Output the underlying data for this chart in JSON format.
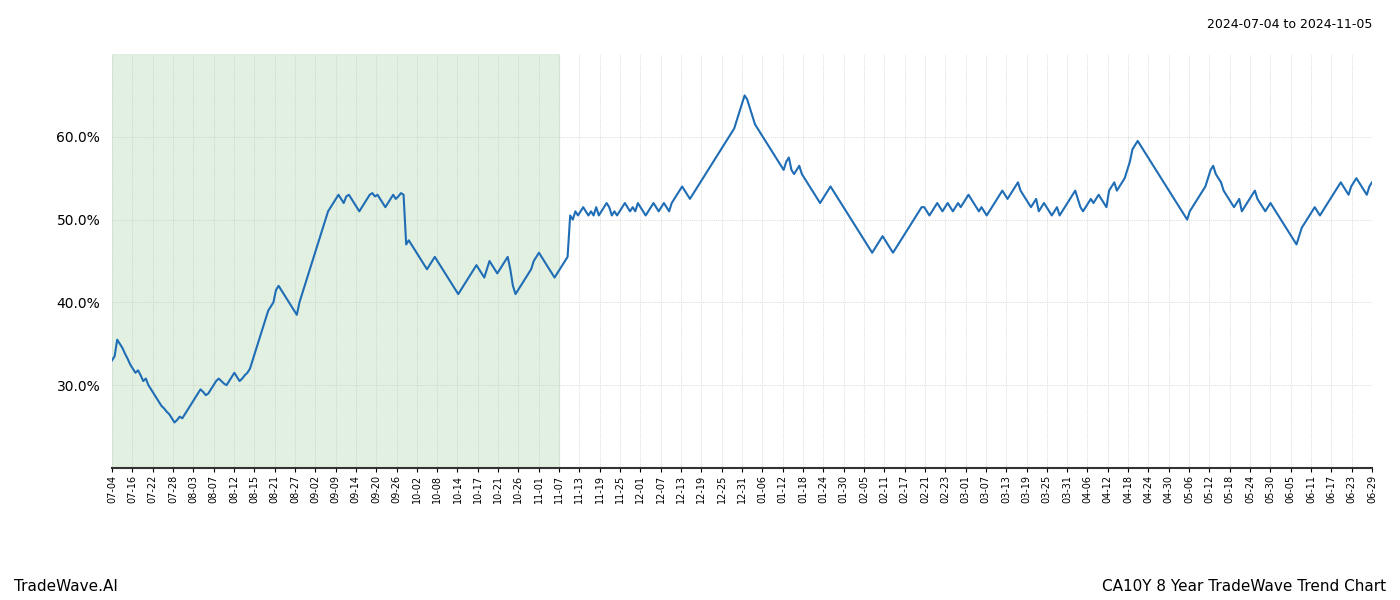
{
  "title_top_right": "2024-07-04 to 2024-11-05",
  "title_bottom_left": "TradeWave.AI",
  "title_bottom_right": "CA10Y 8 Year TradeWave Trend Chart",
  "line_color": "#1f6db5",
  "line_width": 1.5,
  "bg_color": "#ffffff",
  "grid_color": "#bbbbbb",
  "shade_color": "#d6ead6",
  "shade_alpha": 0.7,
  "ylim": [
    20,
    70
  ],
  "yticks": [
    30.0,
    40.0,
    50.0,
    60.0
  ],
  "ytick_labels": [
    "30.0%",
    "40.0%",
    "50.0%",
    "60.0%"
  ],
  "x_labels": [
    "07-04",
    "07-16",
    "07-22",
    "07-28",
    "08-03",
    "08-07",
    "08-12",
    "08-15",
    "08-21",
    "08-27",
    "09-02",
    "09-09",
    "09-14",
    "09-20",
    "09-26",
    "10-02",
    "10-08",
    "10-14",
    "10-17",
    "10-21",
    "10-26",
    "11-01",
    "11-07",
    "11-13",
    "11-19",
    "11-25",
    "12-01",
    "12-07",
    "12-13",
    "12-19",
    "12-25",
    "12-31",
    "01-06",
    "01-12",
    "01-18",
    "01-24",
    "01-30",
    "02-05",
    "02-11",
    "02-17",
    "02-21",
    "02-23",
    "03-01",
    "03-07",
    "03-13",
    "03-19",
    "03-25",
    "03-31",
    "04-06",
    "04-12",
    "04-18",
    "04-24",
    "04-30",
    "05-06",
    "05-12",
    "05-18",
    "05-24",
    "05-30",
    "06-05",
    "06-11",
    "06-17",
    "06-23",
    "06-29"
  ],
  "shade_x_start_label": "07-04",
  "shade_x_end_label": "11-07",
  "values": [
    33.0,
    33.5,
    35.5,
    35.0,
    34.5,
    33.8,
    33.2,
    32.5,
    32.0,
    31.5,
    31.8,
    31.2,
    30.5,
    30.8,
    30.0,
    29.5,
    29.0,
    28.5,
    28.0,
    27.5,
    27.2,
    26.8,
    26.5,
    26.0,
    25.5,
    25.8,
    26.2,
    26.0,
    26.5,
    27.0,
    27.5,
    28.0,
    28.5,
    29.0,
    29.5,
    29.2,
    28.8,
    29.0,
    29.5,
    30.0,
    30.5,
    30.8,
    30.5,
    30.2,
    30.0,
    30.5,
    31.0,
    31.5,
    31.0,
    30.5,
    30.8,
    31.2,
    31.5,
    32.0,
    33.0,
    34.0,
    35.0,
    36.0,
    37.0,
    38.0,
    39.0,
    39.5,
    40.0,
    41.5,
    42.0,
    41.5,
    41.0,
    40.5,
    40.0,
    39.5,
    39.0,
    38.5,
    40.0,
    41.0,
    42.0,
    43.0,
    44.0,
    45.0,
    46.0,
    47.0,
    48.0,
    49.0,
    50.0,
    51.0,
    51.5,
    52.0,
    52.5,
    53.0,
    52.5,
    52.0,
    52.8,
    53.0,
    52.5,
    52.0,
    51.5,
    51.0,
    51.5,
    52.0,
    52.5,
    53.0,
    53.2,
    52.8,
    53.0,
    52.5,
    52.0,
    51.5,
    52.0,
    52.5,
    53.0,
    52.5,
    52.8,
    53.2,
    53.0,
    47.0,
    47.5,
    47.0,
    46.5,
    46.0,
    45.5,
    45.0,
    44.5,
    44.0,
    44.5,
    45.0,
    45.5,
    45.0,
    44.5,
    44.0,
    43.5,
    43.0,
    42.5,
    42.0,
    41.5,
    41.0,
    41.5,
    42.0,
    42.5,
    43.0,
    43.5,
    44.0,
    44.5,
    44.0,
    43.5,
    43.0,
    44.0,
    45.0,
    44.5,
    44.0,
    43.5,
    44.0,
    44.5,
    45.0,
    45.5,
    44.0,
    42.0,
    41.0,
    41.5,
    42.0,
    42.5,
    43.0,
    43.5,
    44.0,
    45.0,
    45.5,
    46.0,
    45.5,
    45.0,
    44.5,
    44.0,
    43.5,
    43.0,
    43.5,
    44.0,
    44.5,
    45.0,
    45.5,
    50.5,
    50.0,
    51.0,
    50.5,
    51.0,
    51.5,
    51.0,
    50.5,
    51.0,
    50.5,
    51.5,
    50.5,
    51.0,
    51.5,
    52.0,
    51.5,
    50.5,
    51.0,
    50.5,
    51.0,
    51.5,
    52.0,
    51.5,
    51.0,
    51.5,
    51.0,
    52.0,
    51.5,
    51.0,
    50.5,
    51.0,
    51.5,
    52.0,
    51.5,
    51.0,
    51.5,
    52.0,
    51.5,
    51.0,
    52.0,
    52.5,
    53.0,
    53.5,
    54.0,
    53.5,
    53.0,
    52.5,
    53.0,
    53.5,
    54.0,
    54.5,
    55.0,
    55.5,
    56.0,
    56.5,
    57.0,
    57.5,
    58.0,
    58.5,
    59.0,
    59.5,
    60.0,
    60.5,
    61.0,
    62.0,
    63.0,
    64.0,
    65.0,
    64.5,
    63.5,
    62.5,
    61.5,
    61.0,
    60.5,
    60.0,
    59.5,
    59.0,
    58.5,
    58.0,
    57.5,
    57.0,
    56.5,
    56.0,
    57.0,
    57.5,
    56.0,
    55.5,
    56.0,
    56.5,
    55.5,
    55.0,
    54.5,
    54.0,
    53.5,
    53.0,
    52.5,
    52.0,
    52.5,
    53.0,
    53.5,
    54.0,
    53.5,
    53.0,
    52.5,
    52.0,
    51.5,
    51.0,
    50.5,
    50.0,
    49.5,
    49.0,
    48.5,
    48.0,
    47.5,
    47.0,
    46.5,
    46.0,
    46.5,
    47.0,
    47.5,
    48.0,
    47.5,
    47.0,
    46.5,
    46.0,
    46.5,
    47.0,
    47.5,
    48.0,
    48.5,
    49.0,
    49.5,
    50.0,
    50.5,
    51.0,
    51.5,
    51.5,
    51.0,
    50.5,
    51.0,
    51.5,
    52.0,
    51.5,
    51.0,
    51.5,
    52.0,
    51.5,
    51.0,
    51.5,
    52.0,
    51.5,
    52.0,
    52.5,
    53.0,
    52.5,
    52.0,
    51.5,
    51.0,
    51.5,
    51.0,
    50.5,
    51.0,
    51.5,
    52.0,
    52.5,
    53.0,
    53.5,
    53.0,
    52.5,
    53.0,
    53.5,
    54.0,
    54.5,
    53.5,
    53.0,
    52.5,
    52.0,
    51.5,
    52.0,
    52.5,
    51.0,
    51.5,
    52.0,
    51.5,
    51.0,
    50.5,
    51.0,
    51.5,
    50.5,
    51.0,
    51.5,
    52.0,
    52.5,
    53.0,
    53.5,
    52.5,
    51.5,
    51.0,
    51.5,
    52.0,
    52.5,
    52.0,
    52.5,
    53.0,
    52.5,
    52.0,
    51.5,
    53.5,
    54.0,
    54.5,
    53.5,
    54.0,
    54.5,
    55.0,
    56.0,
    57.0,
    58.5,
    59.0,
    59.5,
    59.0,
    58.5,
    58.0,
    57.5,
    57.0,
    56.5,
    56.0,
    55.5,
    55.0,
    54.5,
    54.0,
    53.5,
    53.0,
    52.5,
    52.0,
    51.5,
    51.0,
    50.5,
    50.0,
    51.0,
    51.5,
    52.0,
    52.5,
    53.0,
    53.5,
    54.0,
    55.0,
    56.0,
    56.5,
    55.5,
    55.0,
    54.5,
    53.5,
    53.0,
    52.5,
    52.0,
    51.5,
    52.0,
    52.5,
    51.0,
    51.5,
    52.0,
    52.5,
    53.0,
    53.5,
    52.5,
    52.0,
    51.5,
    51.0,
    51.5,
    52.0,
    51.5,
    51.0,
    50.5,
    50.0,
    49.5,
    49.0,
    48.5,
    48.0,
    47.5,
    47.0,
    48.0,
    49.0,
    49.5,
    50.0,
    50.5,
    51.0,
    51.5,
    51.0,
    50.5,
    51.0,
    51.5,
    52.0,
    52.5,
    53.0,
    53.5,
    54.0,
    54.5,
    54.0,
    53.5,
    53.0,
    54.0,
    54.5,
    55.0,
    54.5,
    54.0,
    53.5,
    53.0,
    54.0,
    54.5
  ]
}
